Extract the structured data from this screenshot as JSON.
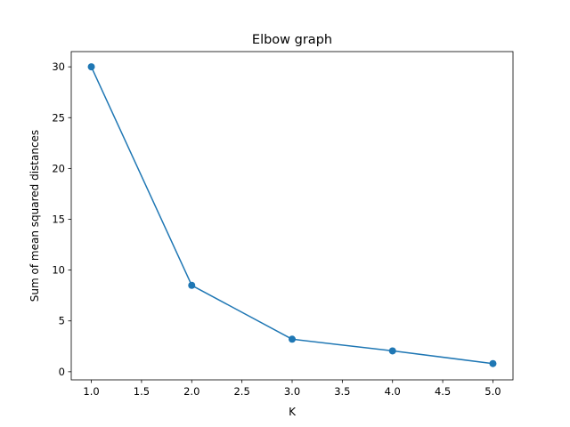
{
  "chart_data": {
    "type": "line",
    "title": "Elbow graph",
    "xlabel": "K",
    "ylabel": "Sum of mean squared distances",
    "xlim": [
      0.8,
      5.2
    ],
    "ylim": [
      -0.8,
      31.5
    ],
    "xticks": [
      "1.0",
      "1.5",
      "2.0",
      "2.5",
      "3.0",
      "3.5",
      "4.0",
      "4.5",
      "5.0"
    ],
    "yticks": [
      "0",
      "5",
      "10",
      "15",
      "20",
      "25",
      "30"
    ],
    "grid": false,
    "series": [
      {
        "x": [
          1,
          2,
          3,
          4,
          5
        ],
        "y": [
          30.0,
          8.5,
          3.2,
          2.05,
          0.8
        ],
        "marker": "circle",
        "color": "#1f77b4"
      }
    ]
  }
}
